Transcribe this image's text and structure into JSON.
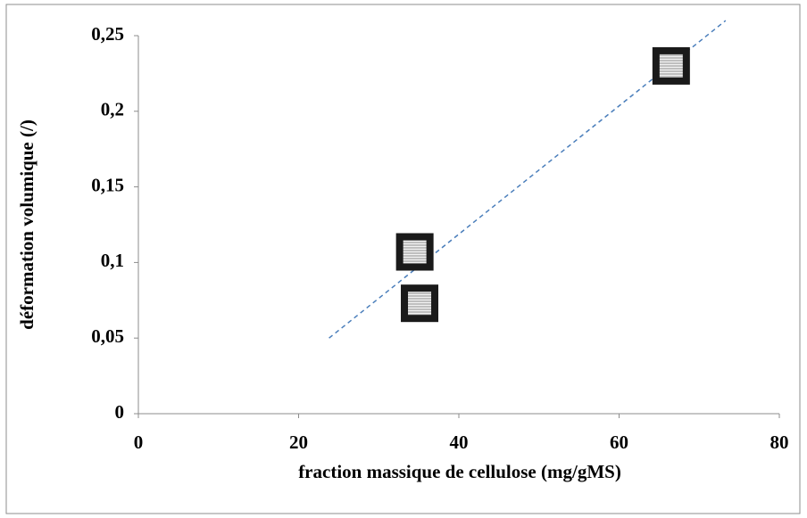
{
  "chart_data": {
    "type": "scatter",
    "x_label": "fraction massique de cellulose (mg/gMS)",
    "y_label": "déformation volumique (/)",
    "series": [
      {
        "color": "#1a1a1a",
        "x": [
          66.5,
          34.5,
          35.1
        ],
        "values": [
          0.23,
          0.107,
          0.073
        ]
      }
    ],
    "trendline": {
      "x": [
        23.8,
        73.3
      ],
      "values": [
        0.05,
        0.26
      ],
      "color": "#4a7ebb",
      "dashed": true
    },
    "xlim": [
      0,
      80
    ],
    "xticks": [
      0,
      20,
      40,
      60,
      80
    ],
    "ylim": [
      0,
      0.25
    ],
    "yticks": [
      0,
      {
        "value": 0.05,
        "label": "0,05"
      },
      {
        "value": 0.1,
        "label": "0,1"
      },
      {
        "value": 0.15,
        "label": "0,15"
      },
      {
        "value": 0.2,
        "label": "0,2"
      },
      {
        "value": 0.25,
        "label": "0,25"
      }
    ],
    "grid": false
  }
}
